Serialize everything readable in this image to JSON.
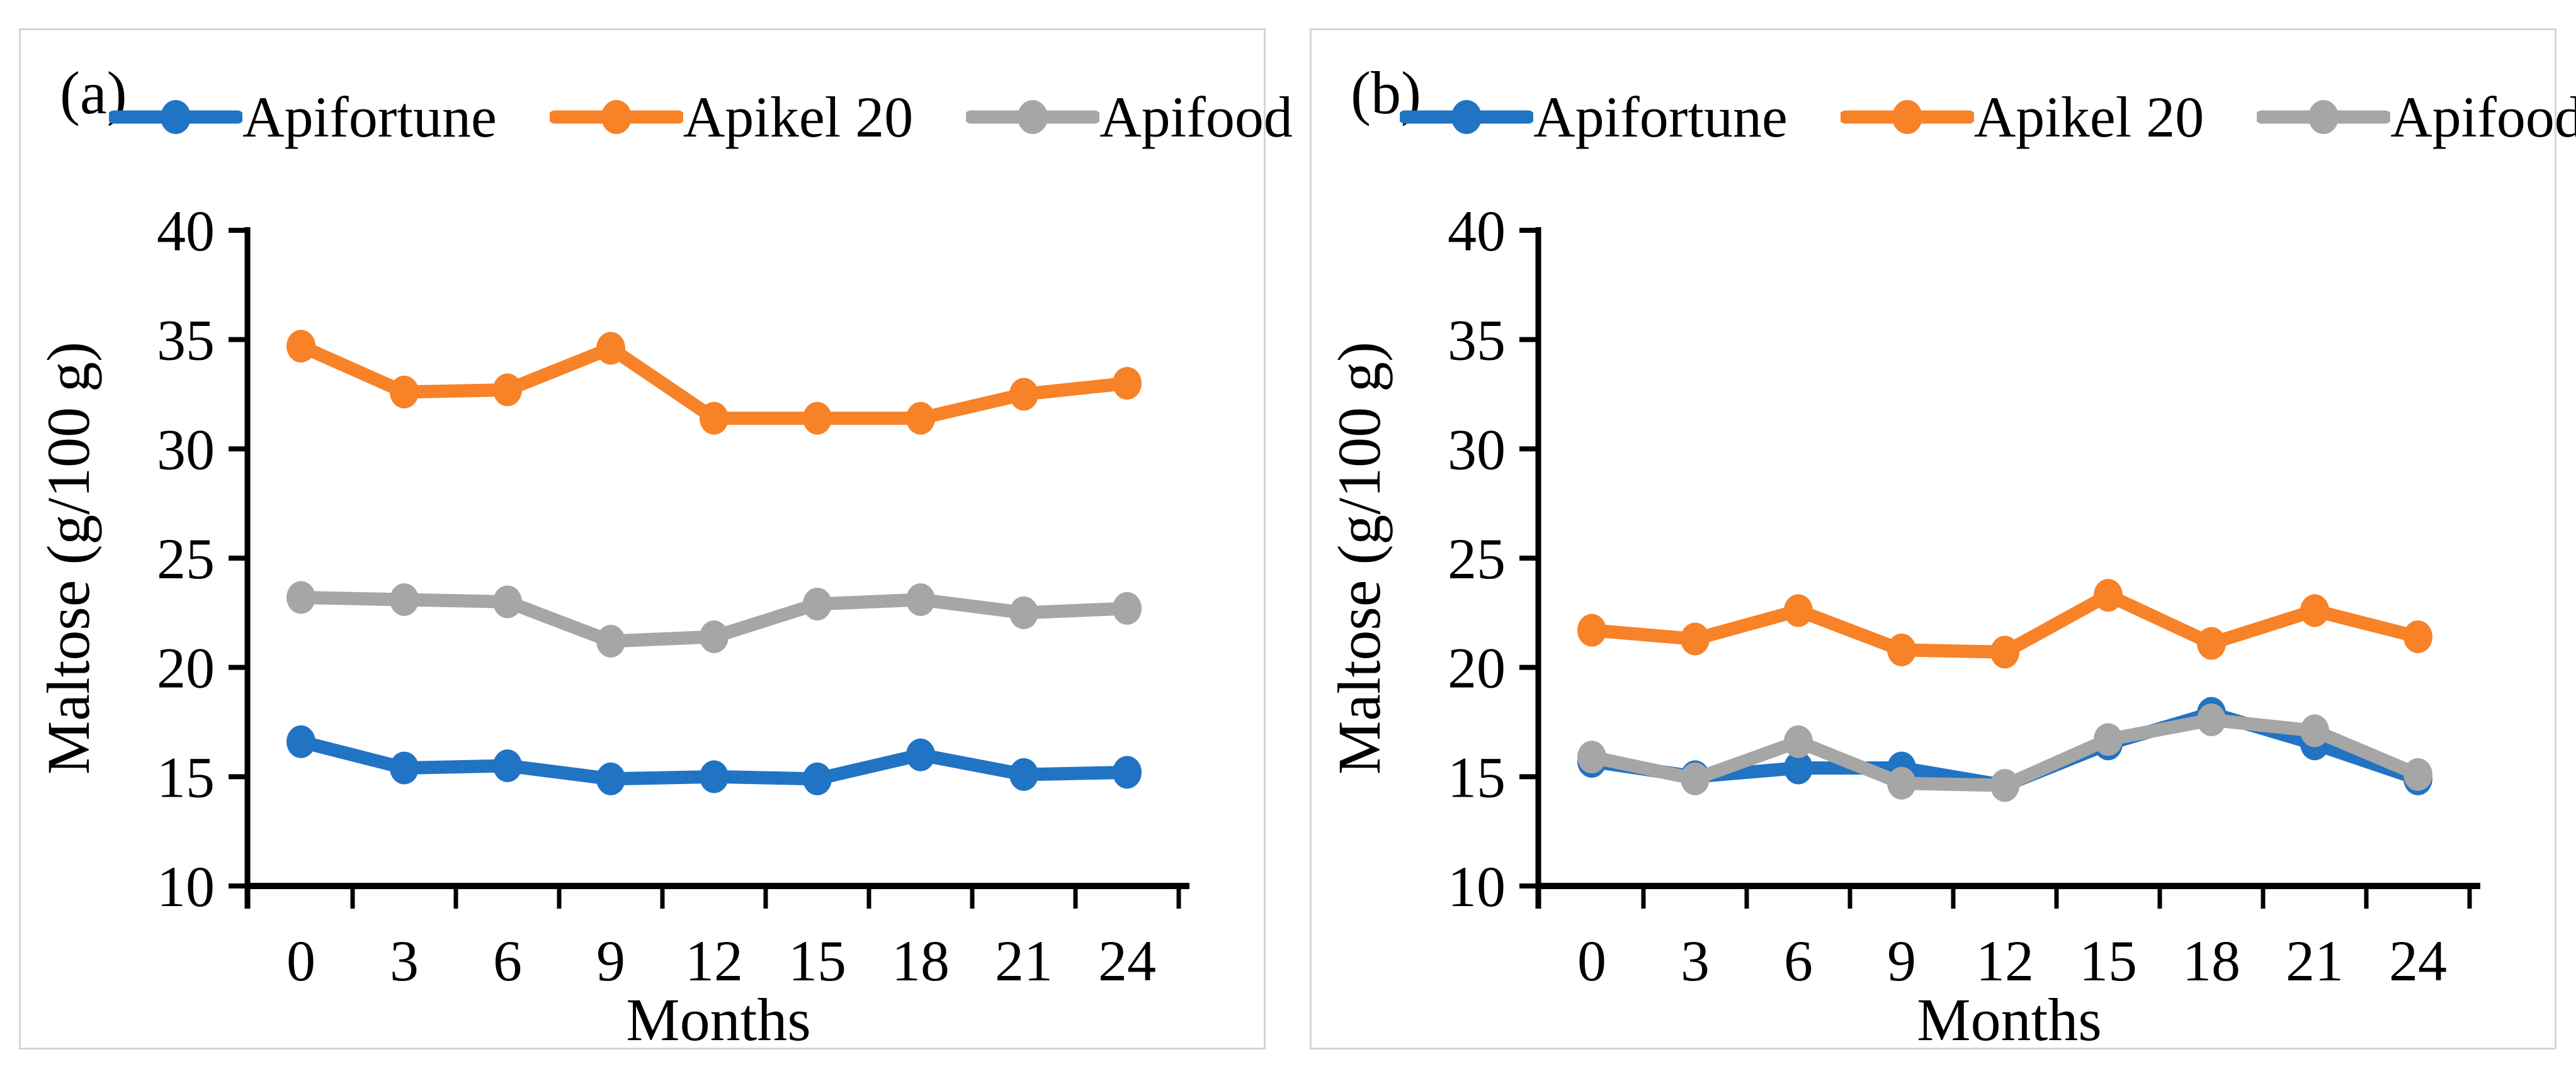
{
  "chart_data": [
    {
      "type": "line",
      "panel_label": "(a)",
      "xlabel": "Months",
      "ylabel": "Maltose (g/100 g)",
      "x": [
        0,
        3,
        6,
        9,
        12,
        15,
        18,
        21,
        24
      ],
      "ylim": [
        10,
        40
      ],
      "yticks": [
        10,
        15,
        20,
        25,
        30,
        35,
        40
      ],
      "grid": false,
      "legend_position": "top",
      "series": [
        {
          "name": "Apifortune",
          "color": "#2173C4",
          "values": [
            16.6,
            15.4,
            15.5,
            14.9,
            15.0,
            14.9,
            16.0,
            15.1,
            15.2
          ]
        },
        {
          "name": "Apikel 20",
          "color": "#F78228",
          "values": [
            34.7,
            32.6,
            32.7,
            34.6,
            31.4,
            31.4,
            31.4,
            32.5,
            33.0
          ]
        },
        {
          "name": "Apifood",
          "color": "#A6A6A6",
          "values": [
            23.2,
            23.1,
            23.0,
            21.2,
            21.4,
            22.9,
            23.1,
            22.5,
            22.7
          ]
        }
      ]
    },
    {
      "type": "line",
      "panel_label": "(b)",
      "xlabel": "Months",
      "ylabel": "Maltose (g/100 g)",
      "x": [
        0,
        3,
        6,
        9,
        12,
        15,
        18,
        21,
        24
      ],
      "ylim": [
        10,
        40
      ],
      "yticks": [
        10,
        15,
        20,
        25,
        30,
        35,
        40
      ],
      "grid": false,
      "legend_position": "top",
      "series": [
        {
          "name": "Apifortune",
          "color": "#2173C4",
          "values": [
            15.7,
            15.0,
            15.4,
            15.4,
            14.6,
            16.5,
            17.9,
            16.5,
            14.9
          ]
        },
        {
          "name": "Apikel 20",
          "color": "#F78228",
          "values": [
            21.7,
            21.3,
            22.6,
            20.8,
            20.7,
            23.3,
            21.1,
            22.6,
            21.4
          ]
        },
        {
          "name": "Apifood",
          "color": "#A6A6A6",
          "values": [
            15.9,
            14.9,
            16.6,
            14.7,
            14.6,
            16.7,
            17.6,
            17.1,
            15.1
          ]
        }
      ]
    }
  ],
  "style": {
    "axis_color": "#000000",
    "panel_border_color": "#D5D5D5",
    "background_color": "#FFFFFF"
  }
}
